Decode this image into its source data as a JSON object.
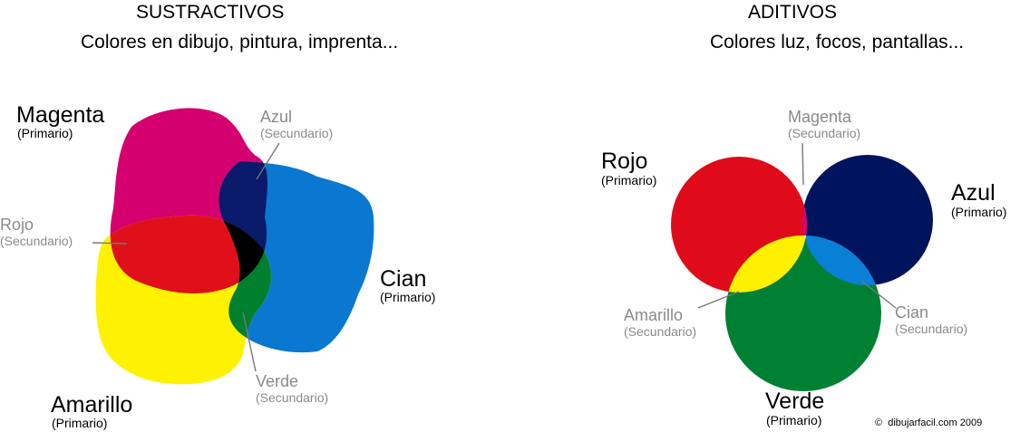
{
  "subtractive": {
    "title": "SUSTRACTIVOS",
    "subtitle": "Colores en dibujo, pintura, imprenta...",
    "primaries": [
      {
        "name": "Magenta",
        "role": "(Primario)",
        "color": "#d4006f"
      },
      {
        "name": "Cian",
        "role": "(Primario)",
        "color": "#0a78d0"
      },
      {
        "name": "Amarillo",
        "role": "(Primario)",
        "color": "#fff200"
      }
    ],
    "secondaries": [
      {
        "name": "Azul",
        "role": "(Secundario)",
        "color": "#0a1a6b"
      },
      {
        "name": "Rojo",
        "role": "(Secundario)",
        "color": "#e0101b"
      },
      {
        "name": "Verde",
        "role": "(Secundario)",
        "color": "#007f2e"
      }
    ],
    "center_color": "#000000"
  },
  "additive": {
    "title": "ADITIVOS",
    "subtitle": "Colores luz, focos, pantallas...",
    "primaries": [
      {
        "name": "Rojo",
        "role": "(Primario)",
        "color": "#e00b1a"
      },
      {
        "name": "Azul",
        "role": "(Primario)",
        "color": "#00145e"
      },
      {
        "name": "Verde",
        "role": "(Primario)",
        "color": "#008033"
      }
    ],
    "secondaries": [
      {
        "name": "Magenta",
        "role": "(Secundario)",
        "color": "#e00070"
      },
      {
        "name": "Amarillo",
        "role": "(Secundario)",
        "color": "#fff000"
      },
      {
        "name": "Cian",
        "role": "(Secundario)",
        "color": "#0a7fd6"
      }
    ],
    "center_color": "#ffffff"
  },
  "credit": {
    "symbol": "©",
    "text": "dibujarfacil.com  2009"
  }
}
